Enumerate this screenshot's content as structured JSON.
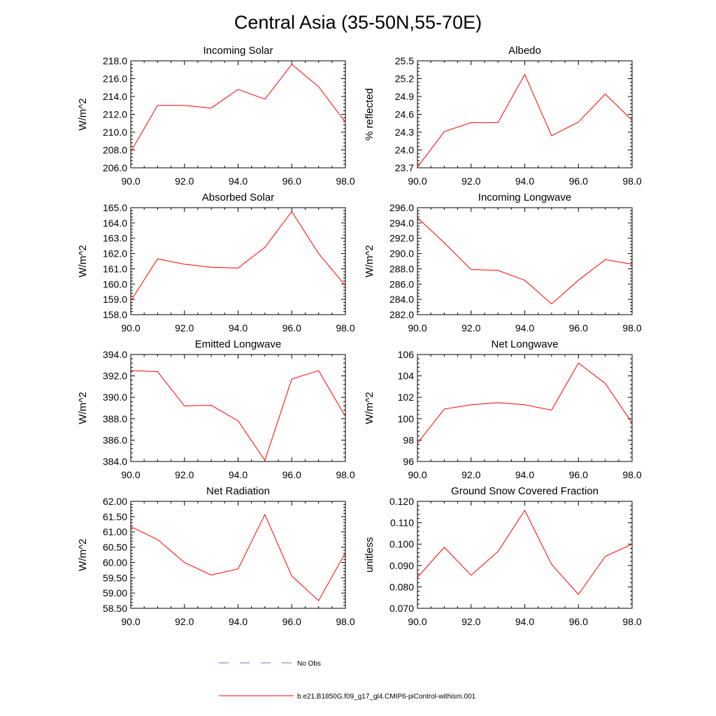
{
  "figure_title": "Central Asia (35-50N,55-70E)",
  "colors": {
    "model": "#ff0000",
    "obs": "#6b6bd6",
    "axis": "#000000"
  },
  "legend": [
    {
      "label": "No Obs",
      "style": "dashed",
      "color": "#6b6bd6"
    },
    {
      "label": "b.e21.B1850G.f09_g17_gl4.CMIP6-piControl-withism.001",
      "style": "solid",
      "color": "#ff0000"
    }
  ],
  "chart_data": [
    {
      "type": "line",
      "title": "Incoming Solar",
      "ylabel": "W/m^2",
      "xlim": [
        90,
        98
      ],
      "xticks": [
        "90.0",
        "92.0",
        "94.0",
        "96.0",
        "98.0"
      ],
      "ylim": [
        206,
        218
      ],
      "yticks": [
        "206.0",
        "208.0",
        "210.0",
        "212.0",
        "214.0",
        "216.0",
        "218.0"
      ],
      "x": [
        90,
        91,
        92,
        93,
        94,
        95,
        96,
        97,
        98
      ],
      "series": [
        {
          "name": "b.e21.B1850G.f09_g17_gl4.CMIP6-piControl-withism.001",
          "values": [
            207.8,
            213.0,
            213.0,
            212.7,
            214.8,
            213.7,
            217.6,
            215.1,
            211.1
          ]
        }
      ]
    },
    {
      "type": "line",
      "title": "Albedo",
      "ylabel": "% reflected",
      "xlim": [
        90,
        98
      ],
      "xticks": [
        "90.0",
        "92.0",
        "94.0",
        "96.0",
        "98.0"
      ],
      "ylim": [
        23.7,
        25.5
      ],
      "yticks": [
        "23.7",
        "24.0",
        "24.3",
        "24.6",
        "24.9",
        "25.2",
        "25.5"
      ],
      "x": [
        90,
        91,
        92,
        93,
        94,
        95,
        96,
        97,
        98
      ],
      "series": [
        {
          "name": "b.e21.B1850G.f09_g17_gl4.CMIP6-piControl-withism.001",
          "values": [
            23.71,
            24.31,
            24.46,
            24.46,
            25.27,
            24.24,
            24.47,
            24.94,
            24.5
          ]
        }
      ]
    },
    {
      "type": "line",
      "title": "Absorbed Solar",
      "ylabel": "W/m^2",
      "xlim": [
        90,
        98
      ],
      "xticks": [
        "90.0",
        "92.0",
        "94.0",
        "96.0",
        "98.0"
      ],
      "ylim": [
        158,
        165
      ],
      "yticks": [
        "158.0",
        "159.0",
        "160.0",
        "161.0",
        "162.0",
        "163.0",
        "164.0",
        "165.0"
      ],
      "x": [
        90,
        91,
        92,
        93,
        94,
        95,
        96,
        97,
        98
      ],
      "series": [
        {
          "name": "b.e21.B1850G.f09_g17_gl4.CMIP6-piControl-withism.001",
          "values": [
            158.9,
            161.65,
            161.3,
            161.1,
            161.05,
            162.4,
            164.75,
            162.0,
            159.9
          ]
        }
      ]
    },
    {
      "type": "line",
      "title": "Incoming Longwave",
      "ylabel": "W/m^2",
      "xlim": [
        90,
        98
      ],
      "xticks": [
        "90.0",
        "92.0",
        "94.0",
        "96.0",
        "98.0"
      ],
      "ylim": [
        282,
        296
      ],
      "yticks": [
        "282.0",
        "284.0",
        "286.0",
        "288.0",
        "290.0",
        "292.0",
        "294.0",
        "296.0"
      ],
      "x": [
        90,
        91,
        92,
        93,
        94,
        95,
        96,
        97,
        98
      ],
      "series": [
        {
          "name": "b.e21.B1850G.f09_g17_gl4.CMIP6-piControl-withism.001",
          "values": [
            294.7,
            291.4,
            287.9,
            287.8,
            286.5,
            283.4,
            286.5,
            289.2,
            288.6
          ]
        }
      ]
    },
    {
      "type": "line",
      "title": "Emitted Longwave",
      "ylabel": "W/m^2",
      "xlim": [
        90,
        98
      ],
      "xticks": [
        "90.0",
        "92.0",
        "94.0",
        "96.0",
        "98.0"
      ],
      "ylim": [
        384,
        394
      ],
      "yticks": [
        "384.0",
        "386.0",
        "388.0",
        "390.0",
        "392.0",
        "394.0"
      ],
      "x": [
        90,
        91,
        92,
        93,
        94,
        95,
        96,
        97,
        98
      ],
      "series": [
        {
          "name": "b.e21.B1850G.f09_g17_gl4.CMIP6-piControl-withism.001",
          "values": [
            392.5,
            392.4,
            389.2,
            389.25,
            387.8,
            384.1,
            391.7,
            392.5,
            388.2
          ]
        }
      ]
    },
    {
      "type": "line",
      "title": "Net Longwave",
      "ylabel": "W/m^2",
      "xlim": [
        90,
        98
      ],
      "xticks": [
        "90.0",
        "92.0",
        "94.0",
        "96.0",
        "98.0"
      ],
      "ylim": [
        96,
        106
      ],
      "yticks": [
        "96",
        "98",
        "100",
        "102",
        "104",
        "106"
      ],
      "x": [
        90,
        91,
        92,
        93,
        94,
        95,
        96,
        97,
        98
      ],
      "series": [
        {
          "name": "b.e21.B1850G.f09_g17_gl4.CMIP6-piControl-withism.001",
          "values": [
            97.7,
            100.9,
            101.3,
            101.5,
            101.3,
            100.8,
            105.2,
            103.3,
            99.6
          ]
        }
      ]
    },
    {
      "type": "line",
      "title": "Net Radiation",
      "ylabel": "W/m^2",
      "xlim": [
        90,
        98
      ],
      "xticks": [
        "90.0",
        "92.0",
        "94.0",
        "96.0",
        "98.0"
      ],
      "ylim": [
        58.5,
        62
      ],
      "yticks": [
        "58.50",
        "59.00",
        "59.50",
        "60.00",
        "60.50",
        "61.00",
        "61.50",
        "62.00"
      ],
      "x": [
        90,
        91,
        92,
        93,
        94,
        95,
        96,
        97,
        98
      ],
      "series": [
        {
          "name": "b.e21.B1850G.f09_g17_gl4.CMIP6-piControl-withism.001",
          "values": [
            61.17,
            60.75,
            60.0,
            59.59,
            59.79,
            61.57,
            59.56,
            58.75,
            60.32
          ]
        }
      ]
    },
    {
      "type": "line",
      "title": "Ground Snow Covered Fraction",
      "ylabel": "unitless",
      "xlim": [
        90,
        98
      ],
      "xticks": [
        "90.0",
        "92.0",
        "94.0",
        "96.0",
        "98.0"
      ],
      "ylim": [
        0.07,
        0.12
      ],
      "yticks": [
        "0.070",
        "0.080",
        "0.090",
        "0.100",
        "0.110",
        "0.120"
      ],
      "x": [
        90,
        91,
        92,
        93,
        94,
        95,
        96,
        97,
        98
      ],
      "series": [
        {
          "name": "b.e21.B1850G.f09_g17_gl4.CMIP6-piControl-withism.001",
          "values": [
            0.0845,
            0.0985,
            0.0855,
            0.0965,
            0.1158,
            0.0905,
            0.0765,
            0.0943,
            0.1
          ]
        }
      ]
    }
  ]
}
